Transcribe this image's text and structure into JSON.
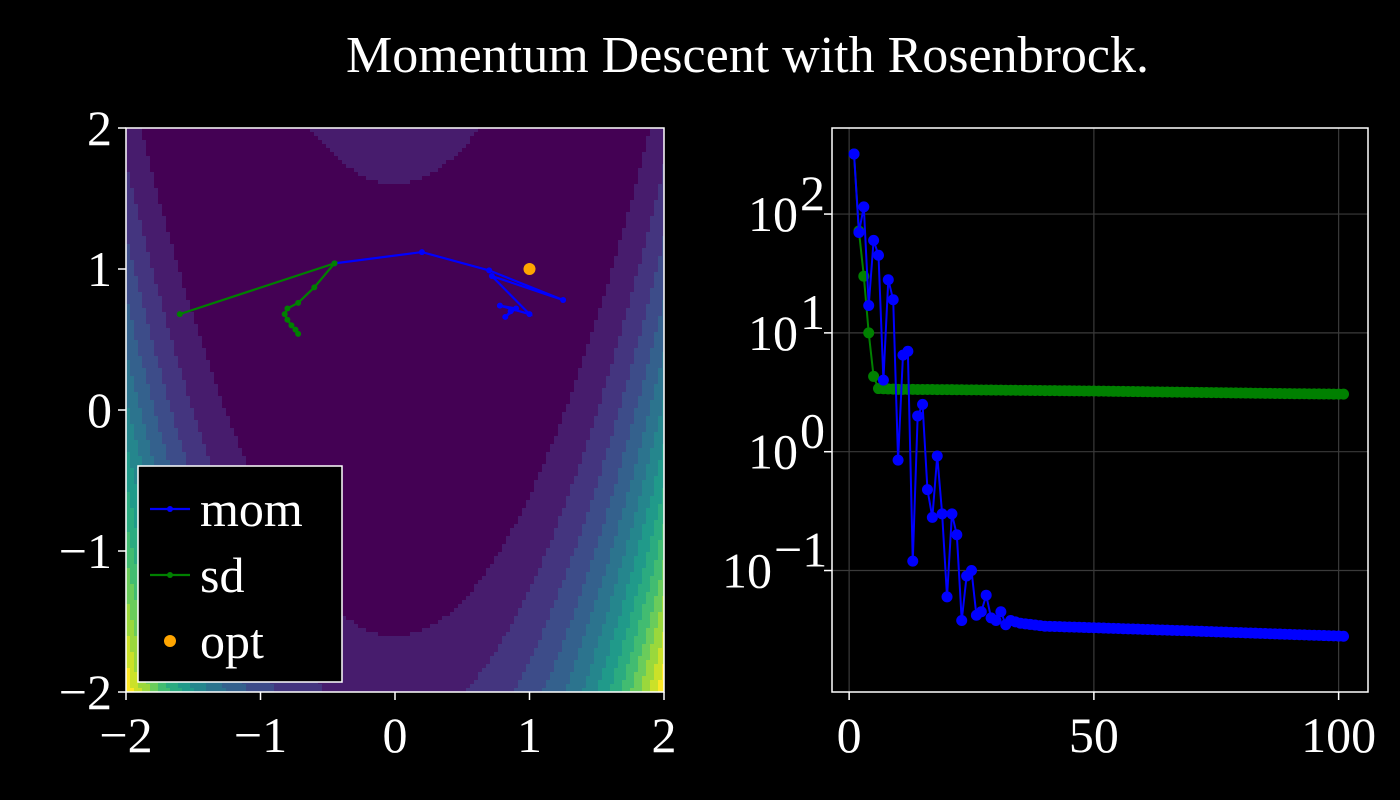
{
  "title": "Momentum Descent with Rosenbrock.",
  "colors": {
    "background": "#000000",
    "mom": "#0000ff",
    "sd": "#008000",
    "opt": "#ffa500",
    "axes": "#ffffff"
  },
  "chart_data": [
    {
      "type": "contour",
      "colormap": "viridis",
      "function": "rosenbrock",
      "xlim": [
        -2,
        2
      ],
      "ylim": [
        -2,
        2
      ],
      "xticks": [
        "−2",
        "−1",
        "0",
        "1",
        "2"
      ],
      "yticks": [
        "−2",
        "−1",
        "0",
        "1",
        "2"
      ],
      "grid": false,
      "legend": {
        "position": "bottom-left",
        "entries": [
          "mom",
          "sd",
          "opt"
        ]
      },
      "series": [
        {
          "name": "mom",
          "type": "line-markers",
          "x": [
            -0.45,
            0.2,
            0.7,
            1.25,
            0.72,
            1.0,
            0.78,
            0.9,
            0.82,
            0.86
          ],
          "y": [
            1.04,
            1.12,
            0.99,
            0.78,
            0.95,
            0.68,
            0.74,
            0.72,
            0.66,
            0.7
          ]
        },
        {
          "name": "sd",
          "type": "line-markers",
          "x": [
            -1.6,
            -0.45,
            -0.6,
            -0.72,
            -0.8,
            -0.82,
            -0.8,
            -0.77,
            -0.74,
            -0.72
          ],
          "y": [
            0.68,
            1.04,
            0.87,
            0.76,
            0.72,
            0.68,
            0.64,
            0.6,
            0.57,
            0.54
          ]
        },
        {
          "name": "opt",
          "type": "scatter",
          "x": [
            1.0
          ],
          "y": [
            1.0
          ]
        }
      ]
    },
    {
      "type": "line",
      "yscale": "log",
      "xlim": [
        -3.5,
        106
      ],
      "ylim": [
        0.0095,
        530
      ],
      "xticks": [
        "0",
        "50",
        "100"
      ],
      "yticks": [
        "10",
        "10",
        "10",
        "10"
      ],
      "ytick_exponents": [
        "2",
        "1",
        "0",
        "−1"
      ],
      "grid": true,
      "series": [
        {
          "name": "mom",
          "points": [
            [
              1,
              320
            ],
            [
              2,
              70
            ],
            [
              3,
              115
            ],
            [
              4,
              17
            ],
            [
              5,
              60
            ],
            [
              6,
              45
            ],
            [
              7,
              4
            ],
            [
              8,
              28
            ],
            [
              9,
              19
            ],
            [
              10,
              0.85
            ],
            [
              11,
              6.5
            ],
            [
              12,
              7
            ],
            [
              13,
              0.12
            ],
            [
              14,
              2
            ],
            [
              15,
              2.5
            ],
            [
              16,
              0.48
            ],
            [
              17,
              0.28
            ],
            [
              18,
              0.92
            ],
            [
              19,
              0.3
            ],
            [
              20,
              0.06
            ],
            [
              21,
              0.3
            ],
            [
              22,
              0.2
            ],
            [
              23,
              0.038
            ],
            [
              24,
              0.09
            ],
            [
              25,
              0.1
            ],
            [
              26,
              0.042
            ],
            [
              27,
              0.045
            ],
            [
              28,
              0.062
            ],
            [
              29,
              0.04
            ],
            [
              30,
              0.038
            ],
            [
              31,
              0.045
            ],
            [
              32,
              0.035
            ],
            [
              33,
              0.038
            ],
            [
              35,
              0.036
            ],
            [
              40,
              0.034
            ],
            [
              50,
              0.033
            ],
            [
              60,
              0.032
            ],
            [
              70,
              0.031
            ],
            [
              80,
              0.03
            ],
            [
              90,
              0.029
            ],
            [
              101,
              0.028
            ]
          ]
        },
        {
          "name": "sd",
          "points": [
            [
              1,
              320
            ],
            [
              2,
              72
            ],
            [
              3,
              30
            ],
            [
              4,
              10
            ],
            [
              5,
              4.3
            ],
            [
              6,
              3.4
            ],
            [
              10,
              3.35
            ],
            [
              20,
              3.33
            ],
            [
              30,
              3.3
            ],
            [
              40,
              3.27
            ],
            [
              50,
              3.24
            ],
            [
              60,
              3.2
            ],
            [
              70,
              3.16
            ],
            [
              80,
              3.12
            ],
            [
              90,
              3.08
            ],
            [
              101,
              3.05
            ]
          ]
        }
      ]
    }
  ]
}
